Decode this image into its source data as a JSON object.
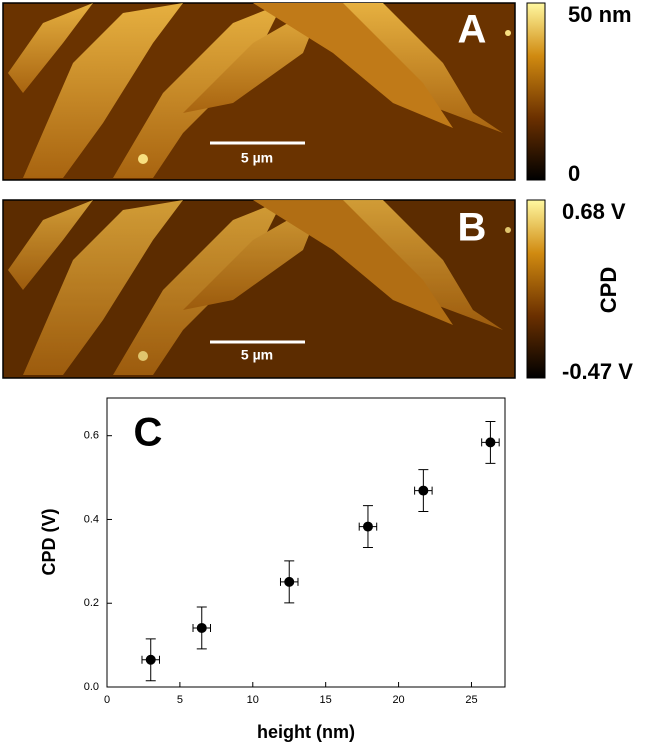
{
  "panels": {
    "a": {
      "label": "A",
      "scale_bar": "5 µm",
      "colorbar_max": "50 nm",
      "colorbar_min": "0"
    },
    "b": {
      "label": "B",
      "scale_bar": "5 µm",
      "colorbar_max": "0.68 V",
      "colorbar_title": "CPD",
      "colorbar_min": "-0.47 V"
    }
  },
  "chart_data": {
    "type": "scatter",
    "panel_label": "C",
    "x_label": "height (nm)",
    "y_label": "CPD (V)",
    "x": [
      3.0,
      6.5,
      12.5,
      17.9,
      21.7,
      26.3
    ],
    "values": [
      0.065,
      0.141,
      0.251,
      0.383,
      0.469,
      0.584
    ],
    "x_err": [
      0.6,
      0.6,
      0.6,
      0.6,
      0.6,
      0.6
    ],
    "y_err": [
      0.05,
      0.05,
      0.05,
      0.05,
      0.05,
      0.05
    ],
    "color": "#000000",
    "xlim": [
      0,
      27.3
    ],
    "ylim": [
      0,
      0.69
    ],
    "xticks": [
      0,
      5,
      10,
      15,
      20,
      25
    ],
    "yticks": [
      {
        "value": 0,
        "label": "0.0"
      },
      0.2,
      0.4,
      0.6
    ]
  }
}
